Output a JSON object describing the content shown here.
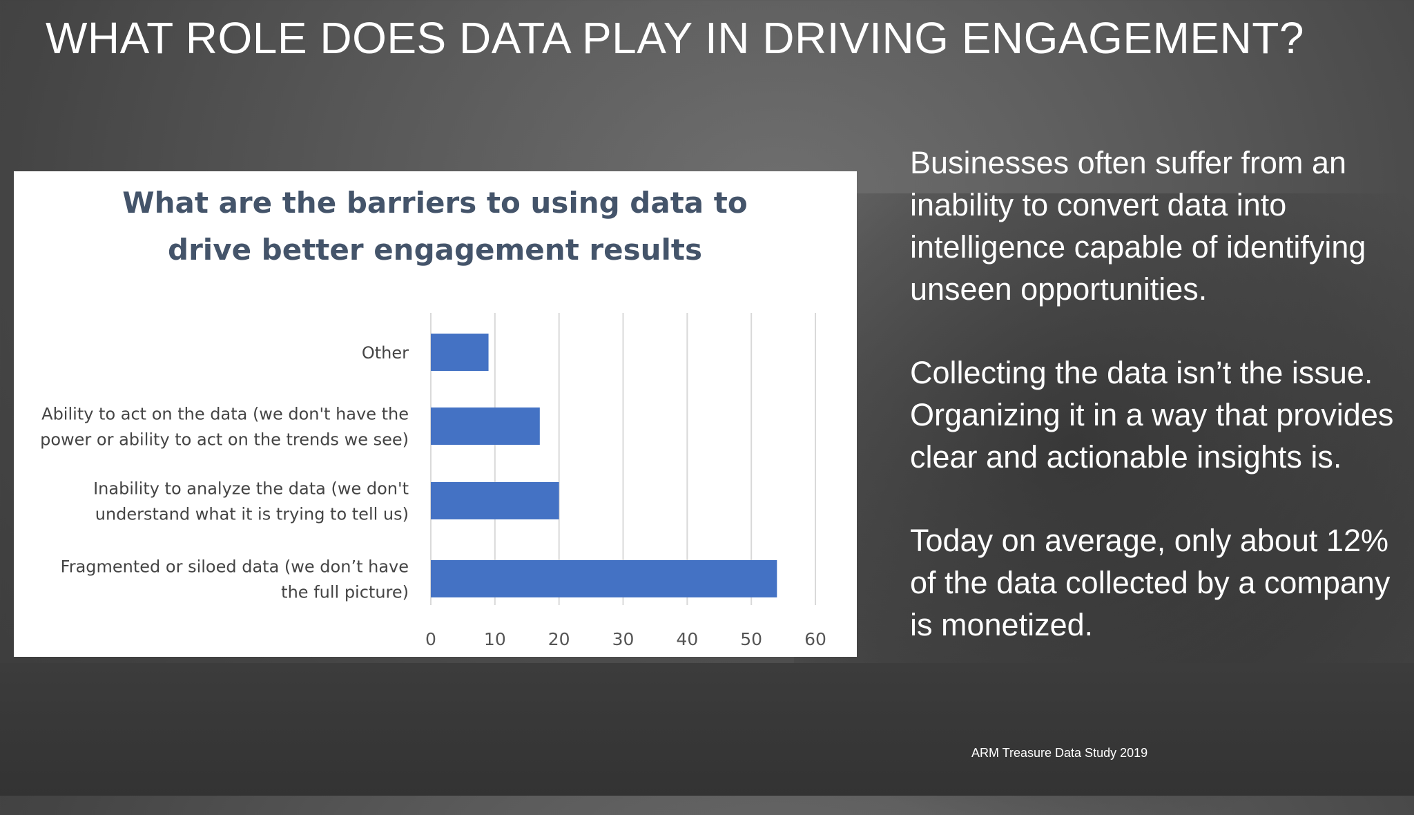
{
  "slide": {
    "title": "WHAT ROLE DOES DATA PLAY IN DRIVING ENGAGEMENT?",
    "paragraphs": [
      "Businesses often suffer from an inability to convert data into intelligence capable of identifying unseen opportunities.",
      "Collecting the data isn’t the issue. Organizing it in a way that provides clear and actionable insights is.",
      "Today on average, only about 12% of the data collected by a company is monetized."
    ],
    "source": "ARM Treasure Data Study 2019"
  },
  "chart_data": {
    "type": "bar",
    "orientation": "horizontal",
    "title_lines": [
      "What are the barriers to using data to",
      "drive better engagement results"
    ],
    "categories": [
      [
        "Other"
      ],
      [
        "Ability to act on the data (we don't have the",
        "power or ability to act on the trends we see)"
      ],
      [
        "Inability to analyze the data (we don't",
        "understand what it is trying to tell us)"
      ],
      [
        "Fragmented or siloed data (we don’t have",
        "the full picture)"
      ]
    ],
    "values": [
      9,
      17,
      20,
      54
    ],
    "xlim": [
      0,
      60
    ],
    "xticks": [
      0,
      10,
      20,
      30,
      40,
      50,
      60
    ],
    "grid": "vertical",
    "bar_color": "#4472c4",
    "legend": "none"
  }
}
